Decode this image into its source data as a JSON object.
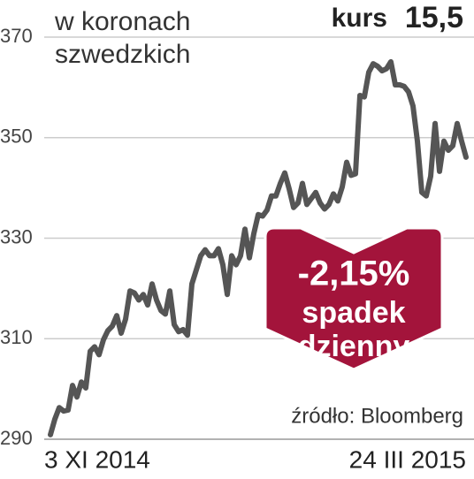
{
  "chart_data": {
    "type": "line",
    "title": "w koronach szwedzkich",
    "price": {
      "label": "kurs",
      "value": 15.5,
      "value_label": "15,5"
    },
    "annotation": {
      "value": -2.15,
      "value_label": "-2,15%",
      "lines": [
        "spadek",
        "dzienny"
      ]
    },
    "source": "źródło: Bloomberg",
    "categories": [
      "3 XI 2014",
      null,
      null,
      null,
      null,
      null,
      null,
      null,
      null,
      null,
      null,
      null,
      null,
      null,
      null,
      null,
      null,
      null,
      null,
      null,
      null,
      null,
      null,
      null,
      null,
      null,
      null,
      null,
      null,
      null,
      null,
      null,
      null,
      null,
      null,
      null,
      null,
      null,
      null,
      null,
      null,
      null,
      null,
      null,
      null,
      null,
      null,
      null,
      null,
      null,
      null,
      null,
      null,
      null,
      null,
      null,
      null,
      null,
      null,
      null,
      null,
      null,
      null,
      null,
      null,
      null,
      null,
      null,
      null,
      null,
      null,
      null,
      null,
      null,
      null,
      null,
      null,
      null,
      null,
      null,
      null,
      null,
      null,
      null,
      null,
      null,
      null,
      null,
      null,
      null,
      null,
      null,
      null,
      null,
      "24 III 2015"
    ],
    "values": [
      290.9,
      294.0,
      296.3,
      295.6,
      295.8,
      300.7,
      298.4,
      301.4,
      300.2,
      307.5,
      308.4,
      306.8,
      309.8,
      311.6,
      312.5,
      314.6,
      311.1,
      313.9,
      319.5,
      319.1,
      317.7,
      318.8,
      316.7,
      320.9,
      317.7,
      315.6,
      314.9,
      319.5,
      312.8,
      311.4,
      311.8,
      310.7,
      320.9,
      323.7,
      326.5,
      327.7,
      326.5,
      326.5,
      327.9,
      324.7,
      318.8,
      326.5,
      324.7,
      326.5,
      331.8,
      326.1,
      330.9,
      334.7,
      334.4,
      335.6,
      338.4,
      338.4,
      340.9,
      343.0,
      339.8,
      336.1,
      337.0,
      340.9,
      336.7,
      337.9,
      339.1,
      337.0,
      335.8,
      336.7,
      338.8,
      337.4,
      340.2,
      345.1,
      342.5,
      342.8,
      358.4,
      358.1,
      363.0,
      364.7,
      364.2,
      363.3,
      363.7,
      365.1,
      360.5,
      360.5,
      360.2,
      359.1,
      356.3,
      349.3,
      339.1,
      338.4,
      342.3,
      352.8,
      343.3,
      349.3,
      347.5,
      348.4,
      352.8,
      349.3,
      346.1
    ],
    "color": "#555555",
    "ylim": [
      290,
      370
    ],
    "yticks": [
      290,
      310,
      330,
      350,
      370
    ],
    "grid": true
  }
}
